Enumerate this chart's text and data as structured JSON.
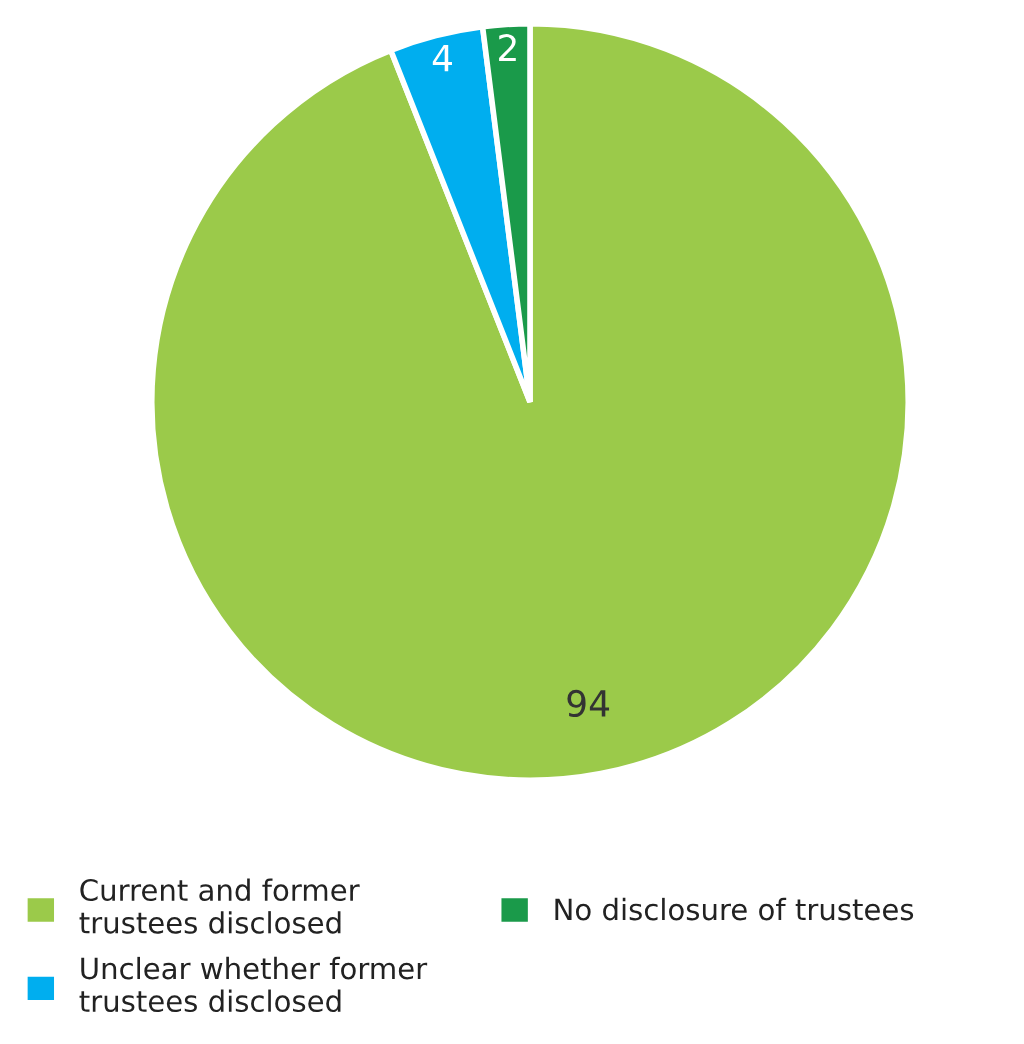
{
  "chart_data": {
    "type": "pie",
    "categories": [
      "Current and former\ntrustees disclosed",
      "Unclear whether former\ntrustees disclosed",
      "No disclosure of trustees"
    ],
    "values": [
      94,
      4,
      2
    ],
    "colors": [
      "#9bca4a",
      "#00aeef",
      "#1a9a4a"
    ],
    "data_labels": true,
    "legend": "bottom"
  }
}
